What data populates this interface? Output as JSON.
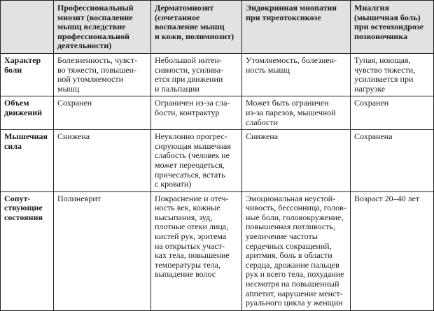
{
  "header": {
    "corner": [],
    "columns": [
      [
        "Профессиональный",
        "миозит (воспаление",
        "мышц вследствие",
        "профессиональной",
        "деятельности)"
      ],
      [
        "Дерматомиозит",
        "(сочетанное",
        "воспаление мышц",
        "и кожи, полимиозит)"
      ],
      [
        "Эндокринная миопатия",
        "при тиреотоксикозе"
      ],
      [
        "Миалгия",
        "(мышечная боль)",
        "при остеохондрозе",
        "позвоночника"
      ]
    ]
  },
  "rows": [
    {
      "label": [
        "Характер",
        "боли"
      ],
      "cells": [
        [
          "Болезненность, чувст-",
          "во тяжести, повышен-",
          "ной утомляемости",
          "мышц"
        ],
        [
          "Небольшой интен-",
          "сивности, усилива-",
          "ется при движении",
          "и пальпации"
        ],
        [
          "Утомляемость, болезнен-",
          "ность мышц"
        ],
        [
          "Тупая, ноющая,",
          "чувство тяжести,",
          "усиливается при",
          "нагрузке"
        ]
      ]
    },
    {
      "label": [
        "Объем",
        "движений"
      ],
      "cells": [
        [
          "Сохранен"
        ],
        [
          "Ограничен из-за сла-",
          "бости, контрактур"
        ],
        [
          "Может быть ограничен",
          "из-за парезов, мышечной",
          "слабости"
        ],
        [
          "Сохранен"
        ]
      ]
    },
    {
      "label": [
        "Мышечная",
        "сила"
      ],
      "cells": [
        [
          "Снижена"
        ],
        [
          "Неуклонно прогрес-",
          "сирующая мышечная",
          "слабость (человек не",
          "может переодеться,",
          "причесаться, встать",
          "с кровати)"
        ],
        [
          "Снижена"
        ],
        [
          "Сохранена"
        ]
      ]
    },
    {
      "label": [
        "Сопут-",
        "ствующие",
        "состояния"
      ],
      "cells": [
        [
          "Полиневрит"
        ],
        [
          "Покраснение и отеч-",
          "ность век, кожные",
          "высыпания, зуд,",
          "плотные отеки лица,",
          "кистей рук, эритема",
          "на открытых участ-",
          "ках тела, повышение",
          "температуры тела,",
          "выпадение волос"
        ],
        [
          "Эмоциональная неустой-",
          "чивость, бессонница, голов-",
          "ные боли, головокружение,",
          "повышенная потливость,",
          "увеличение частоты",
          "сердечных сокращений,",
          "аритмия, боль в области",
          "сердца, дрожание пальцев",
          "рук и всего тела, похудание",
          "несмотря на повышенный",
          "аппетит, нарушение менст-",
          "руального цикла у женщин"
        ],
        [
          "Возраст 20–40 лет"
        ]
      ]
    }
  ]
}
